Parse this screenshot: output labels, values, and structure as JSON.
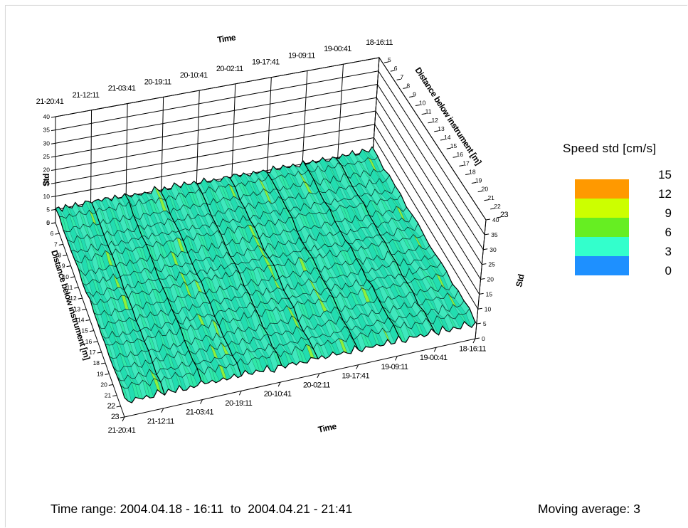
{
  "chart_data": {
    "type": "surface",
    "x_axis_title": "Time",
    "y_axis_title": "Distance below instrument [m]",
    "z_axis_title": "Std",
    "time_ticks": [
      "21-20:41",
      "21-12:11",
      "21-03:41",
      "20-19:11",
      "20-10:41",
      "20-02:11",
      "19-17:41",
      "19-09:11",
      "19-00:41",
      "18-16:11"
    ],
    "depth_ticks": [
      "5",
      "6",
      "7",
      "8",
      "9",
      "10",
      "11",
      "12",
      "13",
      "14",
      "15",
      "16",
      "17",
      "18",
      "19",
      "20",
      "21",
      "22",
      "23"
    ],
    "std_ticks": [
      "0",
      "5",
      "10",
      "15",
      "20",
      "25",
      "30",
      "35",
      "40"
    ],
    "zlim": [
      0,
      40
    ],
    "depth_range_m": [
      5,
      23
    ],
    "approx_std_level_cm_s": 5,
    "color_scale": {
      "title": "Speed std [cm/s]",
      "levels": [
        {
          "label": "15",
          "color": "#ff9900"
        },
        {
          "label": "12",
          "color": "#ccff00"
        },
        {
          "label": "9",
          "color": "#66ee22"
        },
        {
          "label": "6",
          "color": "#33ffcc"
        },
        {
          "label": "3",
          "color": "#1e90ff"
        },
        {
          "label": "0",
          "color": ""
        }
      ]
    },
    "grid": true
  },
  "footer": {
    "time_range": "Time range: 2004.04.18 - 16:11  to  2004.04.21 - 21:41",
    "moving_average": "Moving average: 3"
  }
}
